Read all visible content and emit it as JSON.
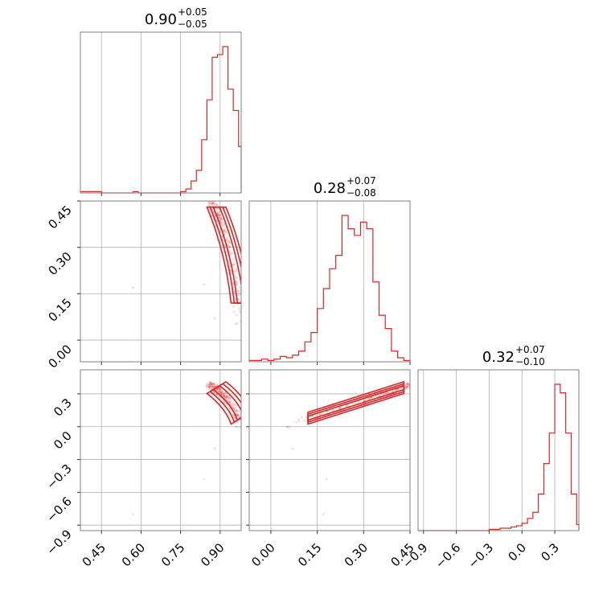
{
  "chart_data": {
    "type": "corner",
    "color": "#d62728",
    "titles": [
      {
        "median": "0.90",
        "plus": "+0.05",
        "minus": "−0.05"
      },
      {
        "median": "0.28",
        "plus": "+0.07",
        "minus": "−0.08"
      },
      {
        "median": "0.32",
        "plus": "+0.07",
        "minus": "−0.10"
      }
    ],
    "params": [
      {
        "range": [
          0.37,
          0.98
        ],
        "ticks": [
          0.45,
          0.6,
          0.75,
          0.9
        ],
        "tick_labels": [
          "0.45",
          "0.60",
          "0.75",
          "0.90"
        ]
      },
      {
        "range": [
          -0.07,
          0.45
        ],
        "ticks": [
          0.0,
          0.15,
          0.3,
          0.45
        ],
        "tick_labels": [
          "0.00",
          "0.15",
          "0.30",
          "0.45"
        ]
      },
      {
        "range": [
          -0.95,
          0.52
        ],
        "ticks": [
          -0.9,
          -0.6,
          -0.3,
          0.0,
          0.3
        ],
        "tick_labels": [
          "−0.9",
          "−0.6",
          "−0.3",
          "0.0",
          "0.3"
        ]
      }
    ],
    "hist1d": [
      {
        "edges": [
          0.37,
          0.39,
          0.41,
          0.43,
          0.45,
          0.47,
          0.49,
          0.51,
          0.53,
          0.55,
          0.57,
          0.59,
          0.61,
          0.63,
          0.65,
          0.67,
          0.69,
          0.71,
          0.73,
          0.75,
          0.77,
          0.79,
          0.81,
          0.83,
          0.85,
          0.87,
          0.89,
          0.91,
          0.93,
          0.95,
          0.97,
          0.98
        ],
        "counts": [
          1,
          1,
          1,
          1,
          0,
          0,
          0,
          0,
          0,
          0,
          1,
          0,
          0,
          0,
          0,
          0,
          0,
          0,
          0,
          1,
          3,
          9,
          17,
          40,
          70,
          102,
          104,
          110,
          78,
          62,
          35
        ]
      },
      {
        "edges": [
          -0.07,
          -0.05,
          -0.03,
          -0.01,
          0.01,
          0.03,
          0.05,
          0.07,
          0.09,
          0.11,
          0.13,
          0.15,
          0.17,
          0.19,
          0.21,
          0.23,
          0.25,
          0.27,
          0.29,
          0.31,
          0.33,
          0.35,
          0.37,
          0.39,
          0.41,
          0.43,
          0.45
        ],
        "counts": [
          1,
          1,
          2,
          1,
          2,
          4,
          3,
          5,
          8,
          15,
          22,
          40,
          55,
          70,
          80,
          110,
          100,
          95,
          105,
          100,
          60,
          35,
          25,
          8,
          3,
          1
        ]
      },
      {
        "edges": [
          -0.95,
          -0.3,
          -0.25,
          -0.2,
          -0.15,
          -0.1,
          -0.05,
          0.0,
          0.05,
          0.1,
          0.15,
          0.2,
          0.25,
          0.3,
          0.35,
          0.4,
          0.45,
          0.5,
          0.52
        ],
        "counts": [
          0,
          1,
          1,
          2,
          2,
          3,
          4,
          6,
          10,
          15,
          30,
          55,
          80,
          120,
          113,
          80,
          30,
          5
        ]
      }
    ]
  }
}
